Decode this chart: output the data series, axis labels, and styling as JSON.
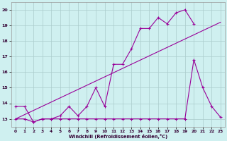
{
  "bg_color": "#cff0f0",
  "grid_color": "#aacccc",
  "line_color": "#990099",
  "xlabel": "Windchill (Refroidissement éolien,°C)",
  "xlim": [
    -0.5,
    23.5
  ],
  "ylim": [
    12.5,
    20.5
  ],
  "xticks": [
    0,
    1,
    2,
    3,
    4,
    5,
    6,
    7,
    8,
    9,
    10,
    11,
    12,
    13,
    14,
    15,
    16,
    17,
    18,
    19,
    20,
    21,
    22,
    23
  ],
  "yticks": [
    13,
    14,
    15,
    16,
    17,
    18,
    19,
    20
  ],
  "series1_x": [
    0,
    1,
    2,
    3,
    4,
    5,
    6,
    7,
    8,
    9,
    10,
    11,
    12,
    13,
    14,
    15,
    16,
    17,
    18,
    19,
    20
  ],
  "series1_y": [
    13.8,
    13.8,
    12.8,
    13.0,
    13.0,
    13.2,
    13.8,
    13.2,
    13.8,
    15.0,
    13.8,
    16.5,
    16.5,
    17.5,
    18.8,
    18.8,
    19.5,
    19.1,
    19.8,
    20.0,
    19.1
  ],
  "series2_x": [
    0,
    23
  ],
  "series2_y": [
    13.0,
    19.2
  ],
  "series3_x": [
    0,
    1,
    2,
    3,
    4,
    5,
    6,
    7,
    8,
    9,
    10,
    11,
    12,
    13,
    14,
    15,
    16,
    17,
    18,
    19,
    20,
    21,
    22,
    23
  ],
  "series3_y": [
    13.0,
    13.0,
    12.8,
    13.0,
    13.0,
    13.0,
    13.0,
    13.0,
    13.0,
    13.0,
    13.0,
    13.0,
    13.0,
    13.0,
    13.0,
    13.0,
    13.0,
    13.0,
    13.0,
    13.0,
    16.8,
    15.0,
    13.8,
    13.1
  ]
}
